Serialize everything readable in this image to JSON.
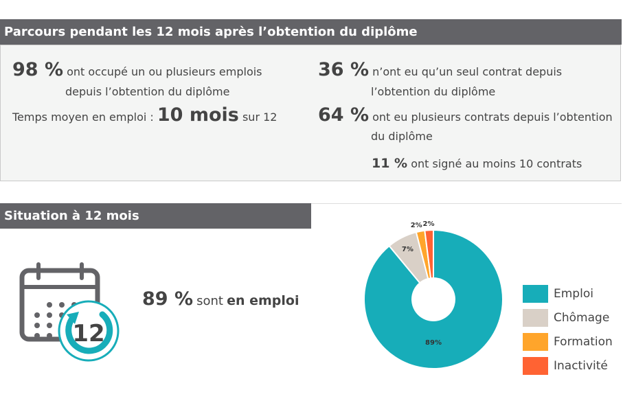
{
  "section1": {
    "title": "Parcours pendant les 12 mois après l’obtention du diplôme",
    "s1_value": "98 %",
    "s1_line1": "ont occupé un ou plusieurs emplois",
    "s1_line2": "depuis l’obtention du diplôme",
    "s2_prefix": "Temps moyen en emploi :",
    "s2_value": "10 mois",
    "s2_suffix": "sur 12",
    "s3_value": "36 %",
    "s3_line1": "n’ont eu qu’un seul contrat depuis",
    "s3_line2": "l’obtention du diplôme",
    "s4_value": "64 %",
    "s4_line1": "ont eu plusieurs contrats depuis l’obtention",
    "s4_line2": "du diplôme",
    "s5_value": "11 %",
    "s5_text": "ont signé au moins 10 contrats"
  },
  "section2": {
    "title": "Situation à 12 mois",
    "icon_number": "12",
    "stat_value": "89 %",
    "stat_text": "sont",
    "stat_bold": "en emploi"
  },
  "chart_data": {
    "type": "pie",
    "donut": true,
    "categories": [
      "Emploi",
      "Chômage",
      "Formation",
      "Inactivité"
    ],
    "values": [
      89,
      7,
      2,
      2
    ],
    "labels": [
      "89%",
      "7%",
      "2%",
      "2%"
    ],
    "colors": [
      "#17adb9",
      "#d9d0c7",
      "#ffa52b",
      "#ff6333"
    ],
    "legend": "right"
  }
}
